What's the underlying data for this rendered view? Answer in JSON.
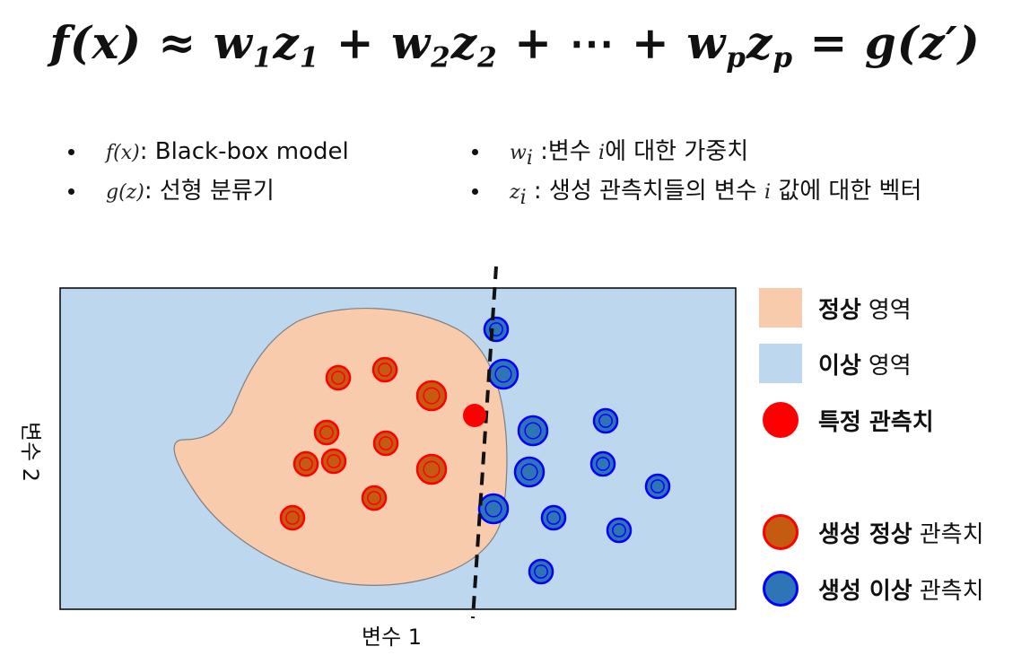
{
  "formula": {
    "lhs": "f(x)",
    "approx": "≈",
    "w1": "w",
    "w1_sub": "1",
    "z1": "z",
    "z1_sub": "1",
    "w2": "w",
    "w2_sub": "2",
    "z2": "z",
    "z2_sub": "2",
    "dots": "⋯",
    "wp": "w",
    "wp_sub": "p",
    "zp": "z",
    "zp_sub": "p",
    "eq": "=",
    "rhs": "g(z′)",
    "plus": "+"
  },
  "bullets_left": [
    {
      "math": "f(x)",
      "text": ": Black-box model"
    },
    {
      "math": "g(z)",
      "text": ": 선형 분류기"
    }
  ],
  "bullets_right": [
    {
      "math": "w",
      "sub": "i",
      "text": " :변수 ",
      "var": "i",
      "text2": "에 대한 가중치"
    },
    {
      "math": "z",
      "sub": "i",
      "text": " : 생성 관측치들의 변수 ",
      "var": "i",
      "text2": " 값에 대한 벡터"
    }
  ],
  "axes": {
    "x_label": "변수 1",
    "y_label": "변수 2"
  },
  "legend": [
    {
      "bold": "정상",
      "rest": "영역",
      "kind": "normal-region",
      "color": "#f8cbad"
    },
    {
      "bold": "이상",
      "rest": "영역",
      "kind": "abnormal-region",
      "color": "#bdd7ee"
    },
    {
      "bold": "특정 관측치",
      "rest": "",
      "kind": "specific-observation",
      "color": "#ff0000"
    },
    {
      "bold": "생성 정상",
      "rest": "관측치",
      "kind": "generated-normal",
      "color": "#c55a11",
      "border": "#ff0000"
    },
    {
      "bold": "생성 이상",
      "rest": "관측치",
      "kind": "generated-abnormal",
      "color": "#2e75b6",
      "border": "#0000ff"
    }
  ],
  "colors": {
    "normal_region": "#f8cbad",
    "abnormal_region": "#bdd7ee",
    "specific_observation": "#ff0000",
    "generated_normal_fill": "#c55a11",
    "generated_normal_border": "#ff0000",
    "generated_abnormal_fill": "#2e75b6",
    "generated_abnormal_border": "#0000ff"
  }
}
